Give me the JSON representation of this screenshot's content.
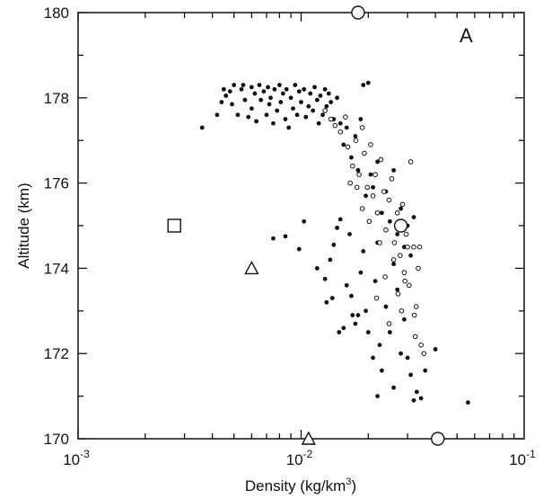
{
  "chart_data": {
    "type": "scatter",
    "panel_label": "A",
    "xlabel": "Density (kg/km",
    "xlabel_sup": "3",
    "xlabel_close": ")",
    "ylabel": "Altitude (km)",
    "x_scale": "log",
    "xlim": [
      0.001,
      0.1
    ],
    "ylim": [
      170,
      180
    ],
    "x_tick_labels": [
      {
        "value": 0.001,
        "base": "10",
        "exp": "-3"
      },
      {
        "value": 0.01,
        "base": "10",
        "exp": "-2"
      },
      {
        "value": 0.1,
        "base": "10",
        "exp": "-1"
      }
    ],
    "y_ticks": [
      170,
      172,
      174,
      176,
      178,
      180
    ],
    "grid": false,
    "series": [
      {
        "marker": "filled-dot",
        "points": [
          [
            0.0036,
            177.3
          ],
          [
            0.0042,
            177.6
          ],
          [
            0.0044,
            177.9
          ],
          [
            0.0045,
            178.2
          ],
          [
            0.0046,
            178.05
          ],
          [
            0.0048,
            178.15
          ],
          [
            0.0049,
            177.85
          ],
          [
            0.005,
            178.3
          ],
          [
            0.0052,
            177.6
          ],
          [
            0.0054,
            178.2
          ],
          [
            0.0055,
            178.3
          ],
          [
            0.0056,
            177.95
          ],
          [
            0.0058,
            177.55
          ],
          [
            0.006,
            178.25
          ],
          [
            0.006,
            177.75
          ],
          [
            0.0062,
            178.1
          ],
          [
            0.0063,
            177.45
          ],
          [
            0.0065,
            178.3
          ],
          [
            0.0066,
            177.95
          ],
          [
            0.0068,
            178.15
          ],
          [
            0.007,
            177.6
          ],
          [
            0.0071,
            178.25
          ],
          [
            0.0072,
            177.85
          ],
          [
            0.0073,
            178.0
          ],
          [
            0.0075,
            177.4
          ],
          [
            0.0076,
            178.2
          ],
          [
            0.0078,
            177.7
          ],
          [
            0.008,
            178.3
          ],
          [
            0.0081,
            177.9
          ],
          [
            0.0083,
            178.1
          ],
          [
            0.0085,
            177.5
          ],
          [
            0.0086,
            178.2
          ],
          [
            0.0088,
            177.3
          ],
          [
            0.009,
            178.0
          ],
          [
            0.0092,
            177.75
          ],
          [
            0.0094,
            178.3
          ],
          [
            0.0096,
            177.6
          ],
          [
            0.0098,
            178.15
          ],
          [
            0.01,
            177.9
          ],
          [
            0.0103,
            178.2
          ],
          [
            0.0105,
            177.55
          ],
          [
            0.0108,
            177.8
          ],
          [
            0.011,
            178.1
          ],
          [
            0.0113,
            177.7
          ],
          [
            0.0115,
            178.25
          ],
          [
            0.0118,
            177.95
          ],
          [
            0.012,
            177.4
          ],
          [
            0.0122,
            178.05
          ],
          [
            0.0125,
            177.6
          ],
          [
            0.0128,
            178.2
          ],
          [
            0.013,
            177.8
          ],
          [
            0.0133,
            178.1
          ],
          [
            0.0136,
            177.9
          ],
          [
            0.014,
            177.5
          ],
          [
            0.0145,
            178.0
          ],
          [
            0.015,
            177.4
          ],
          [
            0.0155,
            176.9
          ],
          [
            0.016,
            177.3
          ],
          [
            0.0168,
            176.6
          ],
          [
            0.0175,
            177.1
          ],
          [
            0.018,
            176.3
          ],
          [
            0.0185,
            177.5
          ],
          [
            0.019,
            178.3
          ],
          [
            0.02,
            178.35
          ],
          [
            0.0195,
            175.7
          ],
          [
            0.0205,
            176.2
          ],
          [
            0.021,
            175.9
          ],
          [
            0.022,
            176.5
          ],
          [
            0.023,
            175.3
          ],
          [
            0.024,
            175.8
          ],
          [
            0.025,
            175.1
          ],
          [
            0.026,
            176.3
          ],
          [
            0.027,
            174.8
          ],
          [
            0.028,
            175.4
          ],
          [
            0.029,
            174.5
          ],
          [
            0.03,
            175.0
          ],
          [
            0.031,
            174.3
          ],
          [
            0.032,
            175.2
          ],
          [
            0.0075,
            174.7
          ],
          [
            0.0085,
            174.75
          ],
          [
            0.0098,
            174.45
          ],
          [
            0.0103,
            175.1
          ],
          [
            0.0118,
            174.0
          ],
          [
            0.0128,
            173.75
          ],
          [
            0.0135,
            174.2
          ],
          [
            0.014,
            174.55
          ],
          [
            0.0145,
            174.95
          ],
          [
            0.015,
            175.15
          ],
          [
            0.013,
            173.2
          ],
          [
            0.0138,
            173.3
          ],
          [
            0.0148,
            172.5
          ],
          [
            0.0155,
            172.6
          ],
          [
            0.016,
            173.6
          ],
          [
            0.0165,
            174.8
          ],
          [
            0.0168,
            173.35
          ],
          [
            0.0175,
            172.7
          ],
          [
            0.018,
            172.9
          ],
          [
            0.0185,
            173.9
          ],
          [
            0.019,
            174.4
          ],
          [
            0.0195,
            173.0
          ],
          [
            0.02,
            172.5
          ],
          [
            0.021,
            171.9
          ],
          [
            0.0215,
            173.7
          ],
          [
            0.022,
            174.6
          ],
          [
            0.0225,
            172.2
          ],
          [
            0.023,
            171.6
          ],
          [
            0.024,
            173.1
          ],
          [
            0.025,
            172.5
          ],
          [
            0.026,
            171.2
          ],
          [
            0.022,
            171.0
          ],
          [
            0.027,
            173.5
          ],
          [
            0.028,
            172.0
          ],
          [
            0.029,
            172.8
          ],
          [
            0.03,
            171.9
          ],
          [
            0.031,
            171.5
          ],
          [
            0.032,
            170.9
          ],
          [
            0.0345,
            170.95
          ],
          [
            0.036,
            171.6
          ],
          [
            0.04,
            172.1
          ],
          [
            0.056,
            170.85
          ],
          [
            0.033,
            171.1
          ],
          [
            0.026,
            174.1
          ],
          [
            0.017,
            172.9
          ]
        ]
      },
      {
        "marker": "open-dot",
        "points": [
          [
            0.0128,
            177.7
          ],
          [
            0.0136,
            177.5
          ],
          [
            0.0142,
            177.35
          ],
          [
            0.015,
            177.2
          ],
          [
            0.0158,
            177.55
          ],
          [
            0.0162,
            176.85
          ],
          [
            0.017,
            176.4
          ],
          [
            0.0176,
            177.0
          ],
          [
            0.0182,
            176.2
          ],
          [
            0.0188,
            177.3
          ],
          [
            0.0192,
            176.7
          ],
          [
            0.0198,
            175.9
          ],
          [
            0.0205,
            176.9
          ],
          [
            0.021,
            175.7
          ],
          [
            0.0215,
            176.2
          ],
          [
            0.022,
            175.3
          ],
          [
            0.0228,
            176.55
          ],
          [
            0.0235,
            175.8
          ],
          [
            0.024,
            174.9
          ],
          [
            0.0248,
            175.6
          ],
          [
            0.0255,
            176.1
          ],
          [
            0.0262,
            174.6
          ],
          [
            0.027,
            175.3
          ],
          [
            0.0278,
            174.3
          ],
          [
            0.0285,
            175.5
          ],
          [
            0.029,
            173.9
          ],
          [
            0.0296,
            174.8
          ],
          [
            0.0305,
            173.6
          ],
          [
            0.031,
            176.5
          ],
          [
            0.032,
            174.5
          ],
          [
            0.0322,
            172.9
          ],
          [
            0.0325,
            172.4
          ],
          [
            0.0328,
            173.1
          ],
          [
            0.0335,
            174.0
          ],
          [
            0.034,
            174.5
          ],
          [
            0.0345,
            172.2
          ],
          [
            0.0355,
            172.0
          ],
          [
            0.0238,
            173.8
          ],
          [
            0.0248,
            172.7
          ],
          [
            0.026,
            174.2
          ],
          [
            0.0272,
            173.4
          ],
          [
            0.0282,
            173.0
          ],
          [
            0.0292,
            173.7
          ],
          [
            0.03,
            174.5
          ],
          [
            0.0218,
            173.3
          ],
          [
            0.0225,
            174.6
          ],
          [
            0.0202,
            175.1
          ],
          [
            0.0188,
            175.4
          ],
          [
            0.0178,
            175.9
          ],
          [
            0.0166,
            176.0
          ]
        ]
      }
    ],
    "special_markers": [
      {
        "marker": "open-square",
        "x": 0.0027,
        "y": 175.0
      },
      {
        "marker": "open-triangle",
        "x": 0.006,
        "y": 174.0
      },
      {
        "marker": "open-triangle",
        "x": 0.0108,
        "y": 170.0
      },
      {
        "marker": "open-circle",
        "x": 0.018,
        "y": 180.0
      },
      {
        "marker": "open-circle",
        "x": 0.028,
        "y": 175.0
      },
      {
        "marker": "open-circle",
        "x": 0.041,
        "y": 170.0
      }
    ]
  }
}
